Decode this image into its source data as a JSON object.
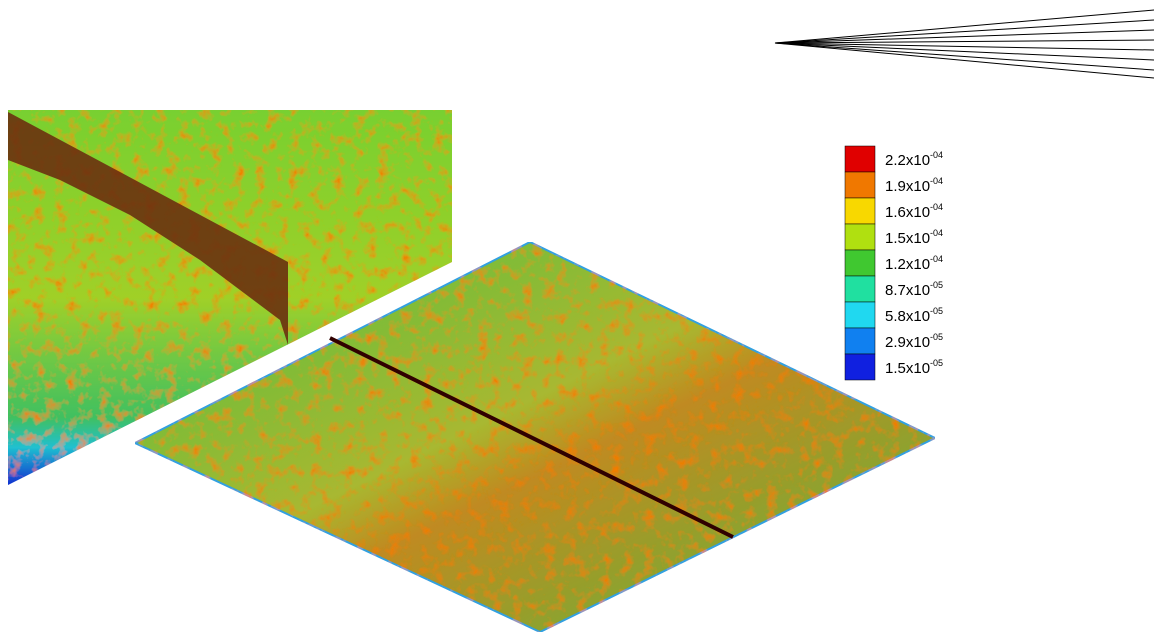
{
  "legend": {
    "entries": [
      {
        "color": "#e00000",
        "base": "2.2x10",
        "exponent": "-04"
      },
      {
        "color": "#f07800",
        "base": "1.9x10",
        "exponent": "-04"
      },
      {
        "color": "#f8d800",
        "base": "1.6x10",
        "exponent": "-04"
      },
      {
        "color": "#b0e010",
        "base": "1.5x10",
        "exponent": "-04"
      },
      {
        "color": "#40c830",
        "base": "1.2x10",
        "exponent": "-04"
      },
      {
        "color": "#20e0a0",
        "base": "8.7x10",
        "exponent": "-05"
      },
      {
        "color": "#20d8f0",
        "base": "5.8x10",
        "exponent": "-05"
      },
      {
        "color": "#1080f0",
        "base": "2.9x10",
        "exponent": "-05"
      },
      {
        "color": "#1020e0",
        "base": "1.5x10",
        "exponent": "-05"
      }
    ]
  }
}
